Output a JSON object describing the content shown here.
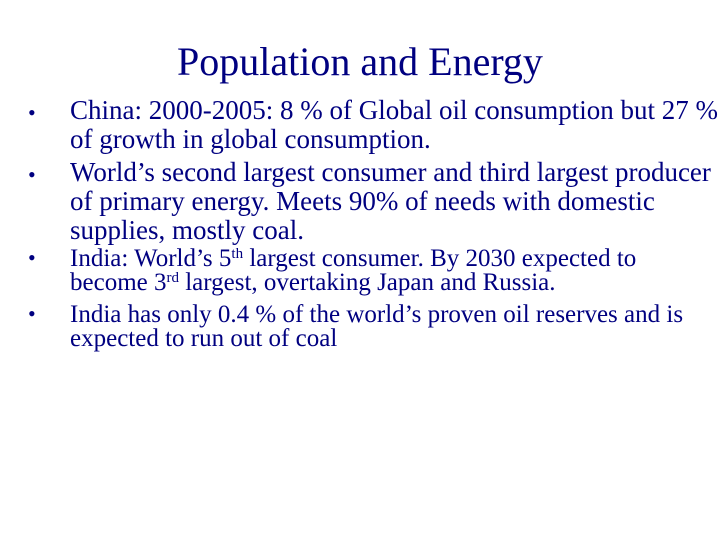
{
  "slide": {
    "title": "Population and Energy",
    "bullet_glyph": "•",
    "bullets": [
      {
        "text": "China: 2000-2005: 8 % of Global oil consumption but 27 % of growth in global consumption."
      },
      {
        "text": "World’s second largest consumer and third largest producer of primary energy.  Meets 90% of needs with domestic supplies, mostly coal."
      },
      {
        "text_a": "India: World’s 5",
        "sup_a": "th",
        "text_b": " largest consumer. By 2030 expected to become 3",
        "sup_b": "rd",
        "text_c": " largest, overtaking Japan and Russia."
      },
      {
        "text": "India has only 0.4 % of the world’s proven oil reserves and is expected to run out of coal"
      }
    ]
  }
}
